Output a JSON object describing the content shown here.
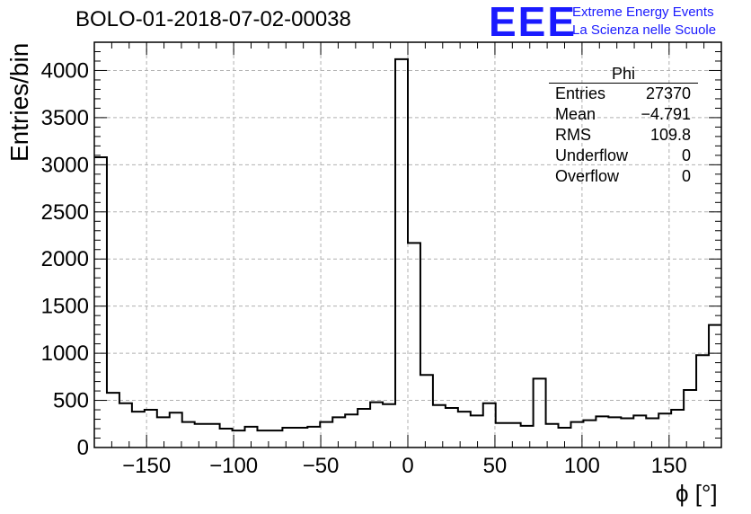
{
  "title": "BOLO-01-2018-07-02-00038",
  "logo": {
    "text": "EEE",
    "line1": "Extreme Energy Events",
    "line2": "La Scienza nelle Scuole",
    "color": "#1a1aff"
  },
  "stats": {
    "name": "Phi",
    "rows": [
      {
        "label": "Entries",
        "value": "27370"
      },
      {
        "label": "Mean",
        "value": "−4.791"
      },
      {
        "label": "RMS",
        "value": "109.8"
      },
      {
        "label": "Underflow",
        "value": "0"
      },
      {
        "label": "Overflow",
        "value": "0"
      }
    ]
  },
  "chart_data": {
    "type": "bar",
    "histogram": true,
    "xlabel": "ϕ [°]",
    "ylabel": "Entries/bin",
    "xlim": [
      -180,
      180
    ],
    "ylim": [
      0,
      4300
    ],
    "bin_width": 7.2,
    "grid": true,
    "x_ticks": [
      -150,
      -100,
      -50,
      0,
      50,
      100,
      150
    ],
    "y_ticks": [
      0,
      500,
      1000,
      1500,
      2000,
      2500,
      3000,
      3500,
      4000
    ],
    "values": [
      3080,
      580,
      470,
      380,
      400,
      320,
      370,
      270,
      250,
      250,
      200,
      180,
      220,
      180,
      180,
      210,
      210,
      220,
      270,
      320,
      350,
      410,
      480,
      460,
      4120,
      2170,
      770,
      450,
      420,
      380,
      340,
      470,
      260,
      260,
      230,
      730,
      250,
      210,
      270,
      290,
      330,
      320,
      310,
      340,
      310,
      360,
      400,
      610,
      980,
      1300
    ]
  }
}
